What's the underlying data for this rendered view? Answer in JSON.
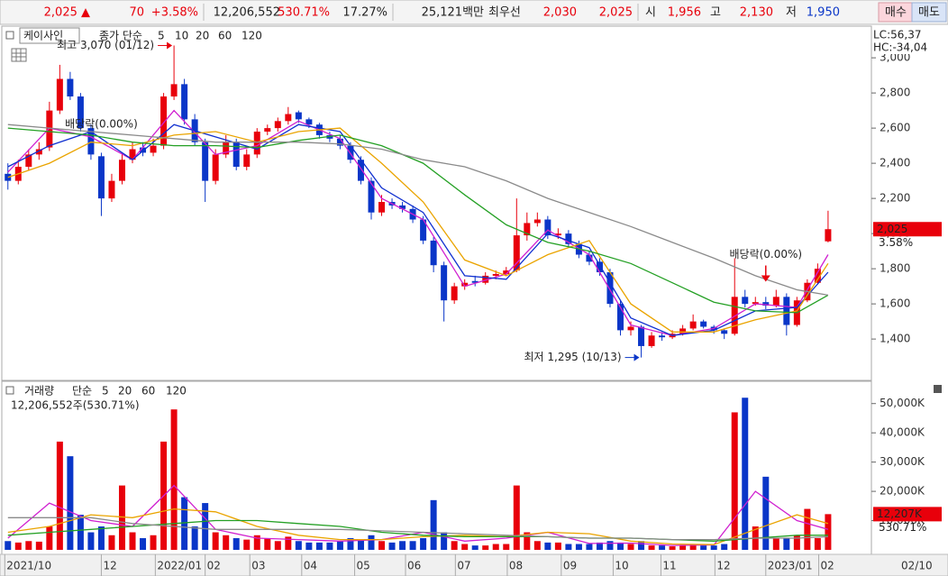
{
  "toolbar": {
    "items": [
      "2,025 ▲",
      "70",
      "+3.58%",
      "12,206,552",
      "530.71%",
      "17.27%",
      "25,121백만",
      "최우선",
      "2,030",
      "2,025",
      "시",
      "1,956",
      "고",
      "2,130",
      "저",
      "1,950",
      "매수",
      "매도"
    ]
  },
  "chart_data": [
    {
      "type": "candlestick",
      "title": "케이사인",
      "ma_label": "종가 단순",
      "up_color": "#e8000b",
      "down_color": "#0a36c8",
      "open": [
        2340,
        2300,
        2380,
        2450,
        2490,
        2700,
        2880,
        2780,
        2600,
        2440,
        2200,
        2300,
        2420,
        2490,
        2460,
        2500,
        2780,
        2850,
        2650,
        2520,
        2300,
        2450,
        2520,
        2380,
        2450,
        2580,
        2600,
        2640,
        2690,
        2650,
        2620,
        2560,
        2540,
        2500,
        2420,
        2300,
        2120,
        2180,
        2160,
        2140,
        2080,
        1960,
        1820,
        1620,
        1700,
        1730,
        1720,
        1760,
        1770,
        1790,
        1990,
        2060,
        2080,
        1990,
        2000,
        1940,
        1880,
        1840,
        1780,
        1600,
        1450,
        1470,
        1360,
        1420,
        1410,
        1430,
        1460,
        1500,
        1470,
        1450,
        1430,
        1640,
        1600,
        1610,
        1590,
        1640,
        1480,
        1620,
        1720,
        1956
      ],
      "high": [
        2400,
        2420,
        2480,
        2520,
        2750,
        2960,
        2920,
        2800,
        2620,
        2460,
        2340,
        2450,
        2520,
        2520,
        2540,
        2800,
        3070,
        2880,
        2680,
        2540,
        2480,
        2560,
        2540,
        2480,
        2600,
        2620,
        2660,
        2720,
        2700,
        2660,
        2630,
        2580,
        2560,
        2520,
        2440,
        2320,
        2220,
        2200,
        2180,
        2160,
        2100,
        1980,
        1840,
        1720,
        1740,
        1760,
        1780,
        1790,
        1810,
        2200,
        2120,
        2120,
        2100,
        2030,
        2020,
        1960,
        1900,
        1860,
        1800,
        1620,
        1500,
        1480,
        1440,
        1440,
        1450,
        1480,
        1540,
        1510,
        1480,
        1460,
        1860,
        1680,
        1640,
        1640,
        1680,
        1660,
        1640,
        1740,
        1830,
        2130
      ],
      "low": [
        2250,
        2280,
        2360,
        2420,
        2470,
        2680,
        2760,
        2580,
        2420,
        2100,
        2180,
        2280,
        2400,
        2440,
        2440,
        2480,
        2760,
        2620,
        2500,
        2180,
        2280,
        2430,
        2360,
        2360,
        2430,
        2560,
        2580,
        2620,
        2630,
        2600,
        2540,
        2520,
        2480,
        2400,
        2280,
        2080,
        2100,
        2140,
        2120,
        2060,
        1940,
        1780,
        1500,
        1600,
        1680,
        1700,
        1710,
        1740,
        1760,
        1780,
        1960,
        2040,
        1970,
        1970,
        1920,
        1860,
        1820,
        1760,
        1580,
        1420,
        1420,
        1295,
        1350,
        1390,
        1400,
        1420,
        1450,
        1460,
        1430,
        1400,
        1420,
        1580,
        1590,
        1570,
        1580,
        1420,
        1470,
        1610,
        1710,
        1950
      ],
      "close": [
        2300,
        2380,
        2450,
        2480,
        2700,
        2880,
        2780,
        2600,
        2450,
        2200,
        2300,
        2420,
        2480,
        2460,
        2500,
        2780,
        2850,
        2650,
        2520,
        2300,
        2450,
        2520,
        2380,
        2450,
        2580,
        2600,
        2640,
        2680,
        2650,
        2620,
        2560,
        2540,
        2500,
        2420,
        2300,
        2120,
        2180,
        2160,
        2140,
        2080,
        1960,
        1820,
        1620,
        1700,
        1720,
        1720,
        1760,
        1770,
        1790,
        1990,
        2060,
        2080,
        1990,
        2000,
        1940,
        1880,
        1840,
        1780,
        1600,
        1450,
        1470,
        1360,
        1420,
        1410,
        1430,
        1460,
        1500,
        1470,
        1450,
        1430,
        1640,
        1600,
        1610,
        1590,
        1640,
        1480,
        1620,
        1720,
        1800,
        2025
      ],
      "xlim": [
        -0.5,
        83
      ],
      "ylim": [
        1175,
        3175
      ],
      "yticks": [
        {
          "value": 1400,
          "label": "1,400"
        },
        {
          "value": 1600,
          "label": "1,600"
        },
        {
          "value": 1800,
          "label": "1,800"
        },
        {
          "value": 2000,
          "label": "2,000"
        },
        {
          "value": 2200,
          "label": "2,200"
        },
        {
          "value": 2400,
          "label": "2,400"
        },
        {
          "value": 2600,
          "label": "2,600"
        },
        {
          "value": 2800,
          "label": "2,800"
        },
        {
          "value": 3000,
          "label": "3,000"
        }
      ],
      "ma_x": [
        0,
        4,
        8,
        12,
        16,
        20,
        24,
        28,
        32,
        36,
        40,
        44,
        48,
        52,
        56,
        60,
        64,
        68,
        72,
        76,
        79
      ],
      "series": [
        {
          "name": "5",
          "color": "#d020d0",
          "values": [
            2350,
            2600,
            2550,
            2420,
            2700,
            2450,
            2500,
            2640,
            2540,
            2200,
            2080,
            1700,
            1770,
            2020,
            1880,
            1480,
            1420,
            1460,
            1600,
            1580,
            1880
          ]
        },
        {
          "name": "10",
          "color": "#1030d0",
          "values": [
            2380,
            2500,
            2580,
            2420,
            2620,
            2550,
            2480,
            2620,
            2580,
            2260,
            2120,
            1760,
            1740,
            2000,
            1920,
            1520,
            1420,
            1450,
            1560,
            1580,
            1780
          ]
        },
        {
          "name": "20",
          "color": "#eaa400",
          "values": [
            2320,
            2400,
            2520,
            2500,
            2560,
            2580,
            2520,
            2580,
            2600,
            2400,
            2180,
            1850,
            1760,
            1880,
            1960,
            1600,
            1440,
            1440,
            1510,
            1560,
            1830
          ]
        },
        {
          "name": "60",
          "color": "#24a024",
          "values": [
            2600,
            2580,
            2560,
            2520,
            2500,
            2500,
            2490,
            2530,
            2560,
            2500,
            2400,
            2220,
            2050,
            1950,
            1900,
            1830,
            1720,
            1610,
            1560,
            1550,
            1650
          ]
        },
        {
          "name": "120",
          "color": "#8a8a8a",
          "values": [
            2620,
            2600,
            2580,
            2560,
            2540,
            2520,
            2520,
            2520,
            2510,
            2480,
            2420,
            2380,
            2300,
            2200,
            2120,
            2040,
            1950,
            1860,
            1760,
            1680,
            1650
          ]
        }
      ],
      "annotations": [
        {
          "text": "최고 3,070 (01/12)",
          "x": 16,
          "y": 3070,
          "color": "#e8000b",
          "arrow": "right"
        },
        {
          "text": "최저 1,295 (10/13)",
          "x": 61,
          "y": 1295,
          "color": "#0a36c8",
          "arrow": "right"
        },
        {
          "text": "배당락(0.00%)",
          "x": 9,
          "y": 2620,
          "color": "#333333"
        },
        {
          "text": "배당락(0.00%)",
          "x": 73,
          "y": 1880,
          "color": "#333333",
          "arrow": "down"
        }
      ],
      "last_label": "2,025",
      "change_label": "3.58%",
      "lc_label": "LC:56,37",
      "hc_label": "HC:-34,04"
    },
    {
      "type": "bar",
      "title": "거래량",
      "ma_label": "단순",
      "info": "12,206,552주(530.71%)",
      "up_color": "#e8000b",
      "down_color": "#0a36c8",
      "values": [
        3000,
        2500,
        3000,
        2800,
        8000,
        37000,
        32000,
        12000,
        6000,
        8000,
        5000,
        22000,
        6000,
        4000,
        5000,
        37000,
        48000,
        18000,
        8000,
        16000,
        6000,
        5000,
        4000,
        3500,
        5000,
        4000,
        3000,
        4500,
        3000,
        2500,
        2500,
        2500,
        3000,
        4000,
        3500,
        5000,
        3000,
        2500,
        3000,
        3000,
        4000,
        17000,
        6000,
        3000,
        2000,
        1500,
        1500,
        2000,
        2000,
        22000,
        6000,
        3000,
        2500,
        2500,
        2000,
        2000,
        2000,
        2500,
        3000,
        2500,
        2000,
        3000,
        1500,
        1500,
        1200,
        1500,
        2000,
        1500,
        1500,
        2000,
        47000,
        52000,
        8000,
        25000,
        4000,
        4000,
        5000,
        14000,
        4000,
        12207
      ],
      "xlim": [
        -0.5,
        83
      ],
      "ylim": [
        0,
        57000
      ],
      "yticks": [
        {
          "value": 10000,
          "label": "10,000K"
        },
        {
          "value": 20000,
          "label": "20,000K"
        },
        {
          "value": 30000,
          "label": "30,000K"
        },
        {
          "value": 40000,
          "label": "40,000K"
        },
        {
          "value": 50000,
          "label": "50,000K"
        }
      ],
      "ma_x": [
        0,
        4,
        8,
        12,
        16,
        20,
        24,
        28,
        32,
        36,
        40,
        44,
        48,
        52,
        56,
        60,
        64,
        68,
        72,
        76,
        79
      ],
      "series": [
        {
          "name": "5",
          "color": "#d020d0",
          "values": [
            4000,
            16000,
            10000,
            8000,
            22000,
            7000,
            4000,
            3500,
            3000,
            3500,
            6000,
            3000,
            4000,
            6000,
            2200,
            2300,
            1500,
            1700,
            20000,
            10000,
            7000
          ]
        },
        {
          "name": "20",
          "color": "#eaa400",
          "values": [
            6000,
            8000,
            12000,
            11000,
            14000,
            13000,
            8000,
            5000,
            3500,
            3500,
            4500,
            5000,
            4500,
            6000,
            5500,
            3000,
            2000,
            1800,
            7000,
            12000,
            9000
          ]
        },
        {
          "name": "60",
          "color": "#24a024",
          "values": [
            5000,
            6000,
            7000,
            8000,
            9000,
            10000,
            10000,
            9000,
            8000,
            6000,
            5000,
            4500,
            4500,
            4500,
            4000,
            4000,
            3500,
            3000,
            4000,
            5000,
            5000
          ]
        },
        {
          "name": "120",
          "color": "#8a8a8a",
          "values": [
            11000,
            11000,
            11000,
            9000,
            8000,
            7000,
            7000,
            7000,
            7000,
            6500,
            6000,
            5500,
            5000,
            4500,
            4000,
            4000,
            3500,
            3500,
            4000,
            4000,
            4500
          ]
        }
      ],
      "last_label": "12,207K",
      "ratio_label": "530.71%",
      "xticks": [
        {
          "value": -0.3,
          "label": "2021/10"
        },
        {
          "value": 9,
          "label": "12"
        },
        {
          "value": 14.2,
          "label": "2022/01"
        },
        {
          "value": 19,
          "label": "02"
        },
        {
          "value": 23.3,
          "label": "03"
        },
        {
          "value": 28.3,
          "label": "04"
        },
        {
          "value": 33.4,
          "label": "05"
        },
        {
          "value": 38.3,
          "label": "06"
        },
        {
          "value": 43.1,
          "label": "07"
        },
        {
          "value": 48.1,
          "label": "08"
        },
        {
          "value": 53.3,
          "label": "09"
        },
        {
          "value": 58.3,
          "label": "10"
        },
        {
          "value": 62.9,
          "label": "11"
        },
        {
          "value": 68.1,
          "label": "12"
        },
        {
          "value": 73,
          "label": "2023/01"
        },
        {
          "value": 78.1,
          "label": "02"
        }
      ],
      "last_date": "02/10"
    }
  ]
}
